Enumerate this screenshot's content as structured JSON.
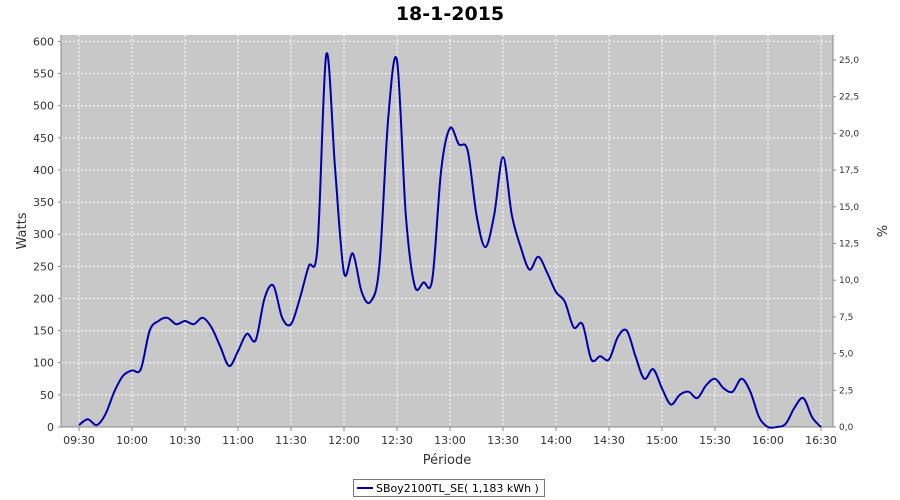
{
  "chart_data": {
    "type": "line",
    "title": "18-1-2015",
    "xlabel": "Période",
    "ylabel": "Watts",
    "y2label": "%",
    "x_ticks": [
      "09:30",
      "10:00",
      "10:30",
      "11:00",
      "11:30",
      "12:00",
      "12:30",
      "13:00",
      "13:30",
      "14:00",
      "14:30",
      "15:00",
      "15:30",
      "16:00",
      "16:30"
    ],
    "ylim": [
      0,
      610
    ],
    "y_ticks": [
      0,
      50,
      100,
      150,
      200,
      250,
      300,
      350,
      400,
      450,
      500,
      550,
      600
    ],
    "y2lim": [
      0,
      26.7
    ],
    "y2_ticks": [
      "0,0",
      "2,5",
      "5,0",
      "7,5",
      "10,0",
      "12,5",
      "15,0",
      "17,5",
      "20,0",
      "22,5",
      "25,0"
    ],
    "grid": true,
    "legend_position": "bottom",
    "background": "#c8c8c8",
    "series": [
      {
        "name": "SBoy2100TL_SE( 1,183 kWh )",
        "color": "#0000aa",
        "x": [
          "09:30",
          "09:35",
          "09:40",
          "09:45",
          "09:50",
          "09:55",
          "10:00",
          "10:05",
          "10:10",
          "10:15",
          "10:20",
          "10:25",
          "10:30",
          "10:35",
          "10:40",
          "10:45",
          "10:50",
          "10:55",
          "11:00",
          "11:05",
          "11:10",
          "11:15",
          "11:20",
          "11:25",
          "11:30",
          "11:35",
          "11:40",
          "11:45",
          "11:50",
          "11:55",
          "12:00",
          "12:05",
          "12:10",
          "12:15",
          "12:20",
          "12:25",
          "12:30",
          "12:35",
          "12:40",
          "12:45",
          "12:50",
          "12:55",
          "13:00",
          "13:05",
          "13:10",
          "13:15",
          "13:20",
          "13:25",
          "13:30",
          "13:35",
          "13:40",
          "13:45",
          "13:50",
          "13:55",
          "14:00",
          "14:05",
          "14:10",
          "14:15",
          "14:20",
          "14:25",
          "14:30",
          "14:35",
          "14:40",
          "14:45",
          "14:50",
          "14:55",
          "15:00",
          "15:05",
          "15:10",
          "15:15",
          "15:20",
          "15:25",
          "15:30",
          "15:35",
          "15:40",
          "15:45",
          "15:50",
          "15:55",
          "16:00",
          "16:05",
          "16:10",
          "16:15",
          "16:20",
          "16:25",
          "16:30"
        ],
        "values": [
          3,
          12,
          3,
          20,
          55,
          80,
          88,
          90,
          150,
          165,
          170,
          160,
          165,
          160,
          170,
          155,
          125,
          95,
          118,
          145,
          135,
          200,
          220,
          170,
          160,
          200,
          250,
          280,
          580,
          400,
          240,
          270,
          210,
          195,
          250,
          480,
          570,
          330,
          220,
          225,
          230,
          400,
          465,
          440,
          430,
          330,
          280,
          330,
          420,
          330,
          280,
          245,
          265,
          240,
          210,
          195,
          155,
          160,
          105,
          110,
          105,
          140,
          150,
          110,
          75,
          90,
          60,
          35,
          50,
          55,
          45,
          65,
          75,
          60,
          55,
          75,
          55,
          15,
          0,
          0,
          5,
          30,
          45,
          15,
          0
        ]
      }
    ]
  }
}
